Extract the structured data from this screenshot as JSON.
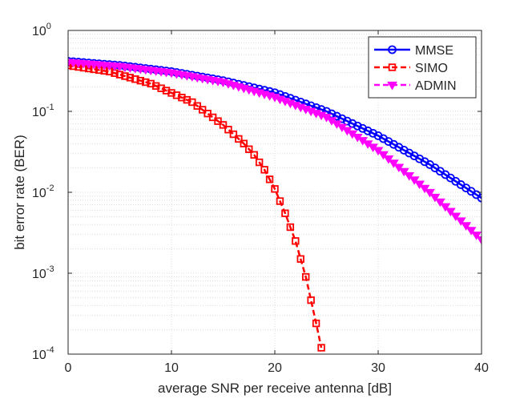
{
  "chart_data": {
    "type": "line",
    "x_scale": "linear",
    "y_scale": "log",
    "xlabel": "average SNR per receive antenna [dB]",
    "ylabel": "bit error rate (BER)",
    "xlim": [
      0,
      40
    ],
    "ylim": [
      0.0001,
      1
    ],
    "x_ticks": [
      {
        "value": 0,
        "label": "0"
      },
      {
        "value": 10,
        "label": "10"
      },
      {
        "value": 20,
        "label": "20"
      },
      {
        "value": 30,
        "label": "30"
      },
      {
        "value": 40,
        "label": "40"
      }
    ],
    "y_ticks": [
      {
        "value": 1,
        "base": "10",
        "exp": "0"
      },
      {
        "value": 0.1,
        "base": "10",
        "exp": "-1"
      },
      {
        "value": 0.01,
        "base": "10",
        "exp": "-2"
      },
      {
        "value": 0.001,
        "base": "10",
        "exp": "-3"
      },
      {
        "value": 0.0001,
        "base": "10",
        "exp": "-4"
      }
    ],
    "grid": true,
    "minor_grid": true,
    "legend_position": "top-right",
    "x_step": 0.5,
    "series": [
      {
        "name": "MMSE",
        "color": "#0000ff",
        "line_style": "solid",
        "marker": "circle",
        "anchors_x": [
          0,
          5,
          10,
          15,
          20,
          25,
          30,
          35,
          40
        ],
        "anchors_y": [
          0.415,
          0.37,
          0.31,
          0.24,
          0.17,
          0.1,
          0.05,
          0.022,
          0.0085
        ]
      },
      {
        "name": "SIMO",
        "color": "#ff0000",
        "line_style": "dashed",
        "marker": "square",
        "anchors_x": [
          0,
          4,
          8,
          12,
          15,
          17,
          18,
          19,
          20,
          21,
          22,
          23,
          24,
          24.5
        ],
        "anchors_y": [
          0.37,
          0.31,
          0.22,
          0.13,
          0.068,
          0.04,
          0.029,
          0.019,
          0.011,
          0.0055,
          0.0025,
          0.0009,
          0.00024,
          0.00012
        ]
      },
      {
        "name": "ADMIN",
        "color": "#ff00ff",
        "line_style": "dashed",
        "marker": "triangle-down",
        "anchors_x": [
          0,
          5,
          10,
          15,
          20,
          25,
          30,
          35,
          40
        ],
        "anchors_y": [
          0.405,
          0.36,
          0.3,
          0.23,
          0.15,
          0.085,
          0.033,
          0.01,
          0.0026
        ]
      }
    ]
  }
}
